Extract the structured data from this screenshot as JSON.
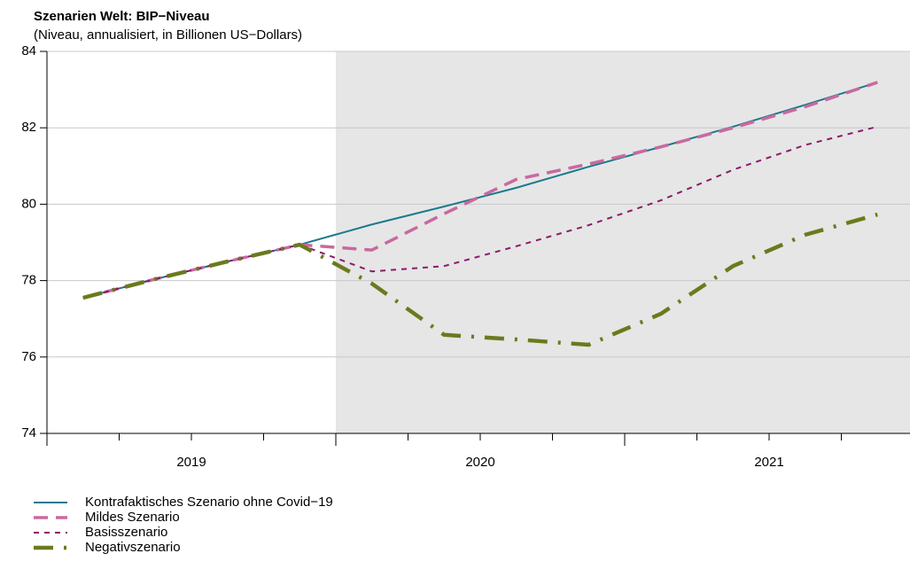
{
  "chart_data": {
    "type": "line",
    "title": "Szenarien Welt: BIP−Niveau",
    "subtitle": "(Niveau, annualisiert, in Billionen US−Dollars)",
    "categories": [
      null,
      null,
      null,
      null,
      null,
      null,
      null,
      null,
      null,
      null,
      null,
      null
    ],
    "year_labels": [
      "2019",
      "2020",
      "2021"
    ],
    "shaded_from_category": 4,
    "ylim": [
      74,
      84
    ],
    "yticks": [
      74,
      76,
      78,
      80,
      82,
      84
    ],
    "grid": true,
    "series": [
      {
        "name": "Kontrafaktisches Szenario ohne Covid−19",
        "color": "#1a7a8c",
        "values": [
          77.55,
          78.04,
          78.5,
          78.94,
          79.47,
          79.94,
          80.43,
          80.98,
          81.5,
          82.03,
          82.6,
          83.19
        ]
      },
      {
        "name": "Mildes Szenario",
        "color": "#c9699f",
        "values": [
          77.55,
          78.04,
          78.5,
          78.94,
          78.8,
          79.75,
          80.65,
          81.05,
          81.5,
          82.0,
          82.55,
          83.19
        ]
      },
      {
        "name": "Basisszenario",
        "color": "#8b1a6b",
        "values": [
          77.55,
          78.04,
          78.5,
          78.94,
          78.24,
          78.38,
          78.9,
          79.45,
          80.1,
          80.9,
          81.55,
          82.03
        ]
      },
      {
        "name": "Negativszenario",
        "color": "#6b7a1e",
        "values": [
          77.55,
          78.04,
          78.5,
          78.94,
          77.92,
          76.58,
          76.46,
          76.32,
          77.13,
          78.38,
          79.2,
          79.73
        ]
      }
    ]
  }
}
